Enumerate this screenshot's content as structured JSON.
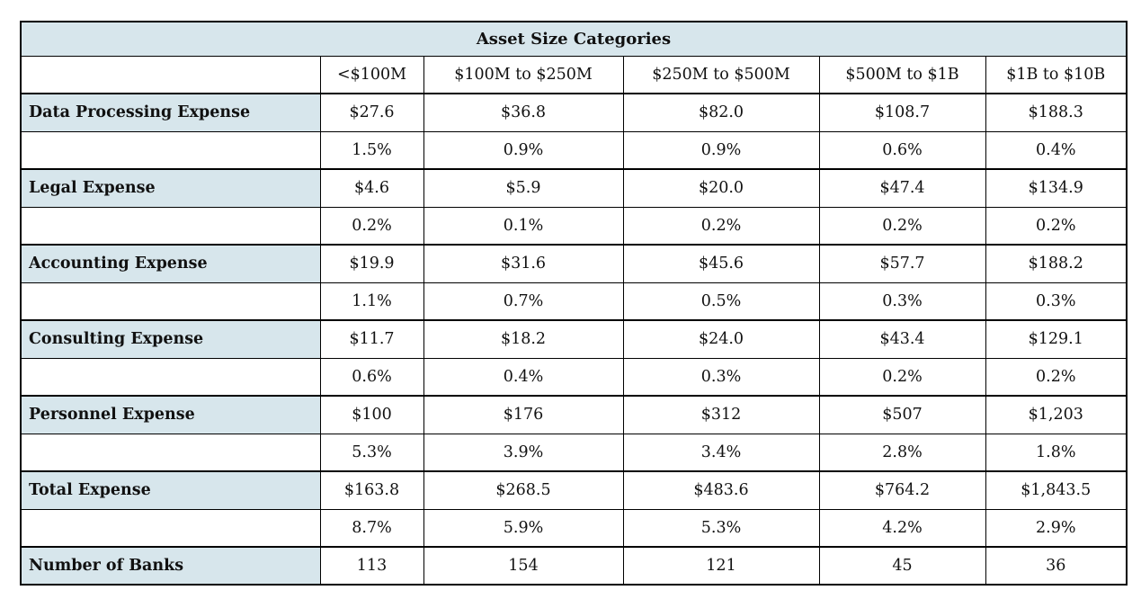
{
  "colors": {
    "header_fill": "#d7e6ec",
    "border": "#000000",
    "text": "#111111",
    "cell_bg": "#ffffff"
  },
  "table": {
    "title": "Asset Size Categories",
    "row_label_header": "",
    "column_headers": [
      "<$100M",
      "$100M to $250M",
      "$250M to $500M",
      "$500M to $1B",
      "$1B to $10B"
    ],
    "rows": [
      {
        "label": "Data Processing Expense",
        "group_start": true,
        "values": [
          "$27.6",
          "$36.8",
          "$82.0",
          "$108.7",
          "$188.3"
        ]
      },
      {
        "label": "",
        "group_start": false,
        "values": [
          "1.5%",
          "0.9%",
          "0.9%",
          "0.6%",
          "0.4%"
        ]
      },
      {
        "label": "Legal Expense",
        "group_start": true,
        "values": [
          "$4.6",
          "$5.9",
          "$20.0",
          "$47.4",
          "$134.9"
        ]
      },
      {
        "label": "",
        "group_start": false,
        "values": [
          "0.2%",
          "0.1%",
          "0.2%",
          "0.2%",
          "0.2%"
        ]
      },
      {
        "label": "Accounting Expense",
        "group_start": true,
        "values": [
          "$19.9",
          "$31.6",
          "$45.6",
          "$57.7",
          "$188.2"
        ]
      },
      {
        "label": "",
        "group_start": false,
        "values": [
          "1.1%",
          "0.7%",
          "0.5%",
          "0.3%",
          "0.3%"
        ]
      },
      {
        "label": "Consulting Expense",
        "group_start": true,
        "values": [
          "$11.7",
          "$18.2",
          "$24.0",
          "$43.4",
          "$129.1"
        ]
      },
      {
        "label": "",
        "group_start": false,
        "values": [
          "0.6%",
          "0.4%",
          "0.3%",
          "0.2%",
          "0.2%"
        ]
      },
      {
        "label": "Personnel Expense",
        "group_start": true,
        "values": [
          "$100",
          "$176",
          "$312",
          "$507",
          "$1,203"
        ]
      },
      {
        "label": "",
        "group_start": false,
        "values": [
          "5.3%",
          "3.9%",
          "3.4%",
          "2.8%",
          "1.8%"
        ]
      },
      {
        "label": "Total Expense",
        "group_start": true,
        "values": [
          "$163.8",
          "$268.5",
          "$483.6",
          "$764.2",
          "$1,843.5"
        ]
      },
      {
        "label": "",
        "group_start": false,
        "values": [
          "8.7%",
          "5.9%",
          "5.3%",
          "4.2%",
          "2.9%"
        ]
      },
      {
        "label": "Number of Banks",
        "group_start": true,
        "values": [
          "113",
          "154",
          "121",
          "45",
          "36"
        ]
      }
    ]
  }
}
